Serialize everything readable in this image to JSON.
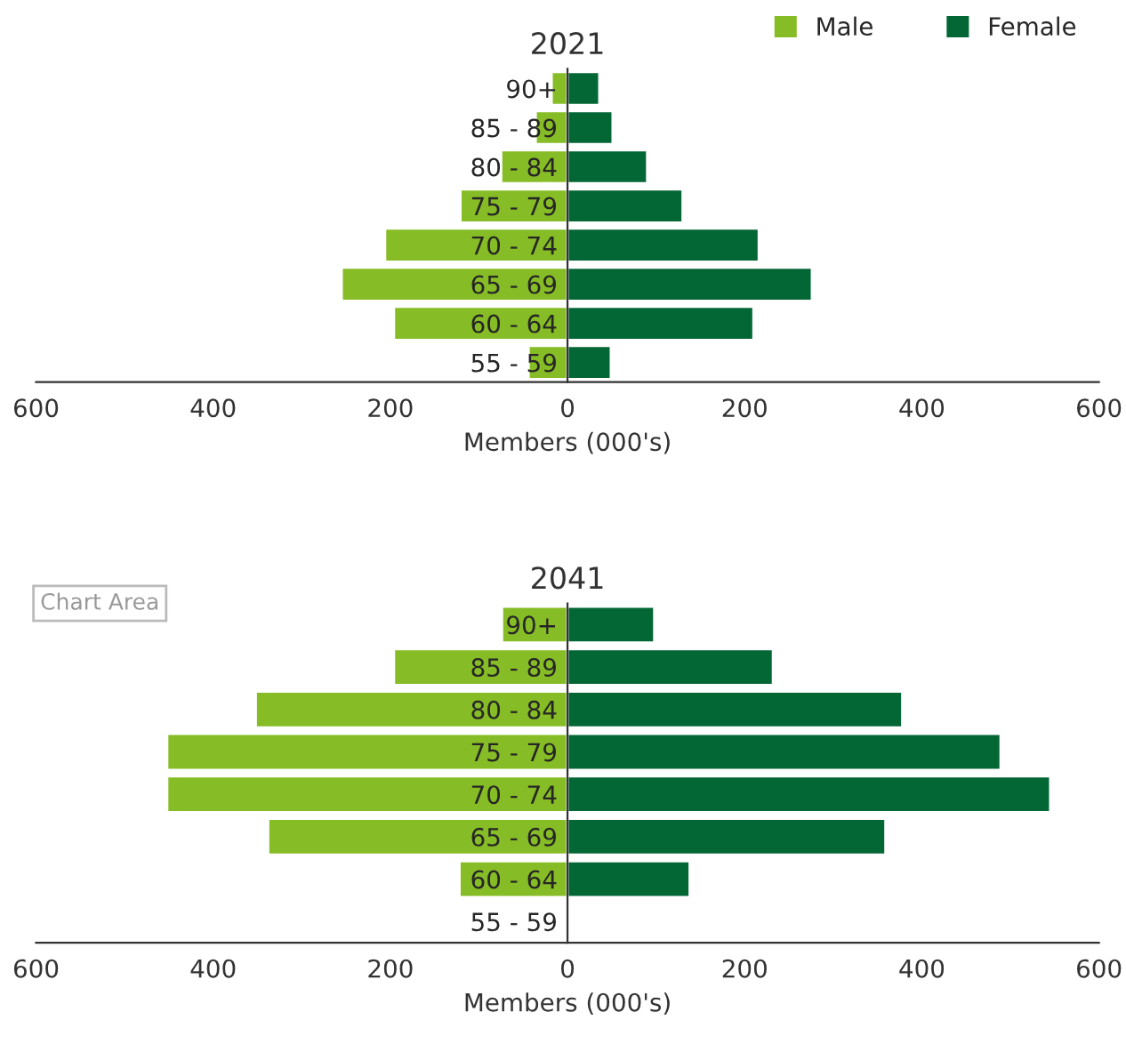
{
  "chart_data": [
    {
      "type": "bar",
      "orientation": "horizontal",
      "title": "2021",
      "xlabel": "Members (000's)",
      "categories": [
        "90+",
        "85 - 89",
        "80 - 84",
        "75 - 79",
        "70 - 74",
        "65 - 69",
        "60 - 64",
        "55 - 59"
      ],
      "series": [
        {
          "name": "Male",
          "color": "#86bc25",
          "values": [
            -18,
            -36,
            -75,
            -121,
            -206,
            -255,
            -196,
            -44
          ]
        },
        {
          "name": "Female",
          "color": "#036635",
          "values": [
            36,
            51,
            90,
            130,
            216,
            276,
            210,
            49
          ]
        }
      ],
      "xlim": [
        -600,
        600
      ],
      "xticks": [
        {
          "value": -600,
          "label": "600"
        },
        {
          "value": -400,
          "label": "400"
        },
        {
          "value": -200,
          "label": "200"
        },
        0,
        200,
        400,
        600
      ],
      "stacked": true,
      "grid": false,
      "legend": "top right"
    },
    {
      "type": "bar",
      "orientation": "horizontal",
      "title": "2041",
      "xlabel": "Members (000's)",
      "categories": [
        "90+",
        "85 - 89",
        "80 - 84",
        "75 - 79",
        "70 - 74",
        "65 - 69",
        "60 - 64",
        "55 - 59"
      ],
      "series": [
        {
          "color": "#86bc25",
          "values": [
            -74,
            -196,
            -352,
            -452,
            -452,
            -338,
            -122,
            null
          ]
        },
        {
          "color": "#036635",
          "values": [
            98,
            232,
            378,
            489,
            545,
            359,
            138,
            null
          ]
        }
      ],
      "xlim": [
        -600,
        600
      ],
      "xticks": [
        {
          "value": -600,
          "label": "600"
        },
        {
          "value": -400,
          "label": "400"
        },
        {
          "value": -200,
          "label": "200"
        },
        0,
        200,
        400,
        600
      ],
      "stacked": true,
      "grid": false,
      "legend": false,
      "annotations": [
        "Chart Area"
      ]
    }
  ]
}
